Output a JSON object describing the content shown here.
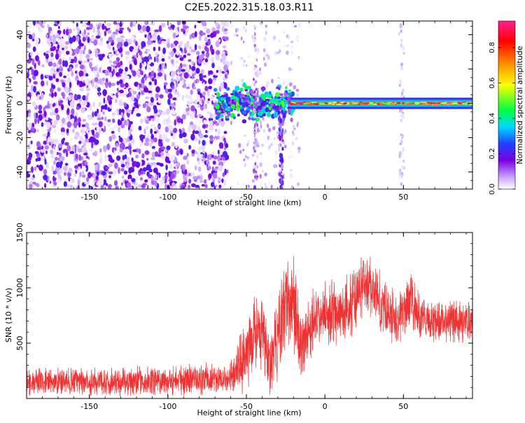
{
  "title": "C2E5.2022.315.18.03.R11",
  "chart_data": [
    {
      "type": "heatmap",
      "xlabel": "Height of straight line (km)",
      "ylabel": "Frequency (Hz)",
      "xlim": [
        -190,
        94
      ],
      "ylim": [
        -50,
        48
      ],
      "x_ticks": [
        -150,
        -100,
        -50,
        0,
        50
      ],
      "y_ticks": [
        -40,
        -20,
        0,
        20,
        40
      ],
      "colorbar": {
        "label": "Normalized spectral amplitude",
        "range": [
          0,
          0.95
        ],
        "ticks": [
          0.0,
          0.2,
          0.4,
          0.6,
          0.8
        ],
        "colors": [
          "#ffffff",
          "#c9a6ff",
          "#7a00e0",
          "#2040ff",
          "#00d8ff",
          "#00ff40",
          "#ffff00",
          "#ff8000",
          "#ff0000",
          "#ff1f8f"
        ]
      },
      "features": [
        {
          "kind": "noise_field",
          "x_range": [
            -190,
            -62
          ],
          "y_range": [
            -50,
            48
          ],
          "level": 0.2
        },
        {
          "kind": "sparse_noise",
          "x_range": [
            -60,
            -16
          ],
          "y_range": [
            -50,
            48
          ],
          "level": 0.08
        },
        {
          "kind": "cluster",
          "x_range": [
            -70,
            -20
          ],
          "y_center": 0,
          "spread": 7,
          "level": 0.4
        },
        {
          "kind": "vertical_streak",
          "x": -28,
          "y_range": [
            -50,
            -2
          ],
          "level": 0.25
        },
        {
          "kind": "vertical_streak",
          "x": -44,
          "y_range": [
            -50,
            48
          ],
          "level": 0.12
        },
        {
          "kind": "vertical_streak",
          "x": 49,
          "y_range": [
            -50,
            48
          ],
          "level": 0.06
        },
        {
          "kind": "band",
          "x_range": [
            -22,
            94
          ],
          "y_center": 0,
          "half_width": 1.5,
          "level": 0.9
        }
      ]
    },
    {
      "type": "line",
      "xlabel": "Height of straight line (km)",
      "ylabel": "SNR (10 * v/v)",
      "xlim": [
        -190,
        94
      ],
      "ylim": [
        0,
        1500
      ],
      "x_ticks": [
        -150,
        -100,
        -50,
        0,
        50
      ],
      "y_ticks": [
        500,
        1000,
        1500
      ],
      "color": "#f03232",
      "series": [
        {
          "x": [
            -190,
            -170,
            -150,
            -130,
            -110,
            -90,
            -70,
            -60,
            -55,
            -50,
            -45,
            -40,
            -35,
            -30,
            -25,
            -20,
            -15,
            -10,
            -5,
            0,
            5,
            10,
            15,
            20,
            25,
            30,
            35,
            40,
            45,
            50,
            55,
            60,
            70,
            80,
            94
          ],
          "mean": [
            150,
            150,
            155,
            150,
            155,
            165,
            175,
            190,
            260,
            420,
            600,
            560,
            330,
            520,
            880,
            900,
            430,
            640,
            720,
            750,
            800,
            760,
            820,
            900,
            1050,
            1000,
            880,
            780,
            720,
            780,
            900,
            720,
            700,
            710,
            690
          ],
          "spread": [
            150,
            150,
            150,
            150,
            150,
            160,
            160,
            180,
            300,
            400,
            420,
            420,
            380,
            400,
            480,
            500,
            450,
            330,
            320,
            320,
            330,
            320,
            330,
            350,
            300,
            320,
            320,
            300,
            300,
            320,
            330,
            260,
            220,
            220,
            210
          ]
        }
      ]
    }
  ]
}
